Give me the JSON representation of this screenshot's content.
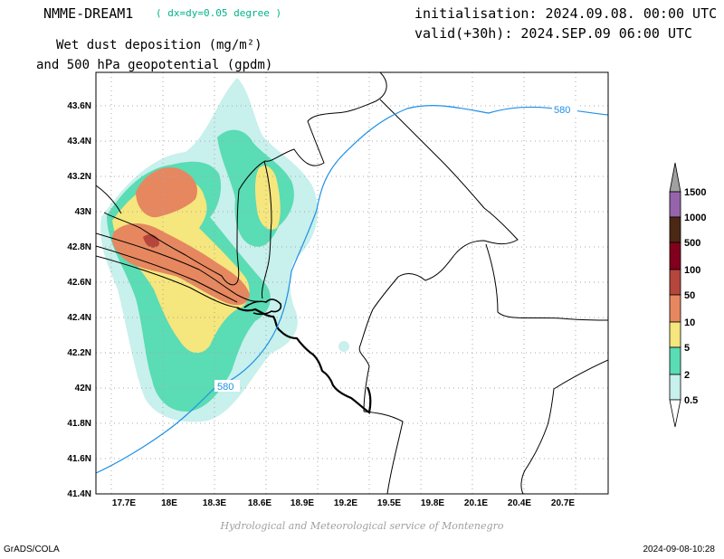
{
  "header": {
    "model": "NMME-DREAM1",
    "resolution": "( dx=dy=0.05 degree )",
    "variable_line1": "Wet dust deposition (mg/m²)",
    "variable_line2": "and 500 hPa geopotential (gpdm)",
    "init": "initialisation: 2024.09.08. 00:00 UTC",
    "valid": "valid(+30h): 2024.SEP.09 06:00 UTC"
  },
  "credit": "Hydrological and Meteorological service of Montenegro",
  "footer": {
    "left": "GrADS/COLA",
    "right": "2024-09-08-10:28"
  },
  "axes": {
    "lon_ticks": [
      "17.7E",
      "18E",
      "18.3E",
      "18.6E",
      "18.9E",
      "19.2E",
      "19.5E",
      "19.8E",
      "20.1E",
      "20.4E",
      "20.7E"
    ],
    "lat_ticks": [
      "41.4N",
      "41.6N",
      "41.8N",
      "42N",
      "42.2N",
      "42.4N",
      "42.6N",
      "42.8N",
      "43N",
      "43.2N",
      "43.4N",
      "43.6N"
    ]
  },
  "contour_label": "580",
  "colorbar": {
    "labels": [
      "0.5",
      "2",
      "5",
      "10",
      "50",
      "100",
      "500",
      "1000",
      "1500"
    ],
    "colors": [
      "#c8f0ec",
      "#5adcb4",
      "#f5e67d",
      "#e6875f",
      "#b4463c",
      "#82001e",
      "#4b2814",
      "#9664aa",
      "#a0a0a0"
    ]
  }
}
